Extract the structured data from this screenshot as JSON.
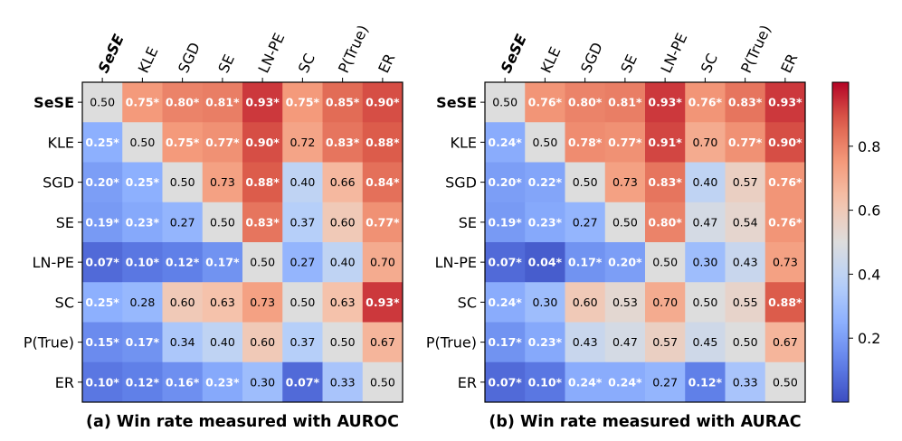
{
  "chart_data": [
    {
      "type": "heatmap",
      "title": "(a) Win rate measured with AUROC",
      "rows": [
        "SeSE",
        "KLE",
        "SGD",
        "SE",
        "LN-PE",
        "SC",
        "P(True)",
        "ER"
      ],
      "cols": [
        "SeSE",
        "KLE",
        "SGD",
        "SE",
        "LN-PE",
        "SC",
        "P(True)",
        "ER"
      ],
      "bold_label": "SeSE",
      "values": [
        [
          0.5,
          0.75,
          0.8,
          0.81,
          0.93,
          0.75,
          0.85,
          0.9
        ],
        [
          0.25,
          0.5,
          0.75,
          0.77,
          0.9,
          0.72,
          0.83,
          0.88
        ],
        [
          0.2,
          0.25,
          0.5,
          0.73,
          0.88,
          0.4,
          0.66,
          0.84
        ],
        [
          0.19,
          0.23,
          0.27,
          0.5,
          0.83,
          0.37,
          0.6,
          0.77
        ],
        [
          0.07,
          0.1,
          0.12,
          0.17,
          0.5,
          0.27,
          0.4,
          0.7
        ],
        [
          0.25,
          0.28,
          0.6,
          0.63,
          0.73,
          0.5,
          0.63,
          0.93
        ],
        [
          0.15,
          0.17,
          0.34,
          0.4,
          0.6,
          0.37,
          0.5,
          0.67
        ],
        [
          0.1,
          0.12,
          0.16,
          0.23,
          0.3,
          0.07,
          0.33,
          0.5
        ]
      ],
      "labels": [
        [
          "0.50",
          "0.75*",
          "0.80*",
          "0.81*",
          "0.93*",
          "0.75*",
          "0.85*",
          "0.90*"
        ],
        [
          "0.25*",
          "0.50",
          "0.75*",
          "0.77*",
          "0.90*",
          "0.72",
          "0.83*",
          "0.88*"
        ],
        [
          "0.20*",
          "0.25*",
          "0.50",
          "0.73",
          "0.88*",
          "0.40",
          "0.66",
          "0.84*"
        ],
        [
          "0.19*",
          "0.23*",
          "0.27",
          "0.50",
          "0.83*",
          "0.37",
          "0.60",
          "0.77*"
        ],
        [
          "0.07*",
          "0.10*",
          "0.12*",
          "0.17*",
          "0.50",
          "0.27",
          "0.40",
          "0.70"
        ],
        [
          "0.25*",
          "0.28",
          "0.60",
          "0.63",
          "0.73",
          "0.50",
          "0.63",
          "0.93*"
        ],
        [
          "0.15*",
          "0.17*",
          "0.34",
          "0.40",
          "0.60",
          "0.37",
          "0.50",
          "0.67"
        ],
        [
          "0.10*",
          "0.12*",
          "0.16*",
          "0.23*",
          "0.30",
          "0.07*",
          "0.33",
          "0.50"
        ]
      ]
    },
    {
      "type": "heatmap",
      "title": "(b) Win rate measured with AURAC",
      "rows": [
        "SeSE",
        "KLE",
        "SGD",
        "SE",
        "LN-PE",
        "SC",
        "P(True)",
        "ER"
      ],
      "cols": [
        "SeSE",
        "KLE",
        "SGD",
        "SE",
        "LN-PE",
        "SC",
        "P(True)",
        "ER"
      ],
      "bold_label": "SeSE",
      "values": [
        [
          0.5,
          0.76,
          0.8,
          0.81,
          0.93,
          0.76,
          0.83,
          0.93
        ],
        [
          0.24,
          0.5,
          0.78,
          0.77,
          0.91,
          0.7,
          0.77,
          0.9
        ],
        [
          0.2,
          0.22,
          0.5,
          0.73,
          0.83,
          0.4,
          0.57,
          0.76
        ],
        [
          0.19,
          0.23,
          0.27,
          0.5,
          0.8,
          0.47,
          0.54,
          0.76
        ],
        [
          0.07,
          0.04,
          0.17,
          0.2,
          0.5,
          0.3,
          0.43,
          0.73
        ],
        [
          0.24,
          0.3,
          0.6,
          0.53,
          0.7,
          0.5,
          0.55,
          0.88
        ],
        [
          0.17,
          0.23,
          0.43,
          0.47,
          0.57,
          0.45,
          0.5,
          0.67
        ],
        [
          0.07,
          0.1,
          0.24,
          0.24,
          0.27,
          0.12,
          0.33,
          0.5
        ]
      ],
      "labels": [
        [
          "0.50",
          "0.76*",
          "0.80*",
          "0.81*",
          "0.93*",
          "0.76*",
          "0.83*",
          "0.93*"
        ],
        [
          "0.24*",
          "0.50",
          "0.78*",
          "0.77*",
          "0.91*",
          "0.70",
          "0.77*",
          "0.90*"
        ],
        [
          "0.20*",
          "0.22*",
          "0.50",
          "0.73",
          "0.83*",
          "0.40",
          "0.57",
          "0.76*"
        ],
        [
          "0.19*",
          "0.23*",
          "0.27",
          "0.50",
          "0.80*",
          "0.47",
          "0.54",
          "0.76*"
        ],
        [
          "0.07*",
          "0.04*",
          "0.17*",
          "0.20*",
          "0.50",
          "0.30",
          "0.43",
          "0.73"
        ],
        [
          "0.24*",
          "0.30",
          "0.60",
          "0.53",
          "0.70",
          "0.50",
          "0.55",
          "0.88*"
        ],
        [
          "0.17*",
          "0.23*",
          "0.43",
          "0.47",
          "0.57",
          "0.45",
          "0.50",
          "0.67"
        ],
        [
          "0.07*",
          "0.10*",
          "0.24*",
          "0.24*",
          "0.27",
          "0.12*",
          "0.33",
          "0.50"
        ]
      ]
    }
  ],
  "colorbar": {
    "colormap": "coolwarm",
    "range": [
      0,
      1
    ],
    "ticks": [
      0.2,
      0.4,
      0.6,
      0.8
    ],
    "tick_labels": [
      "0.2",
      "0.4",
      "0.6",
      "0.8"
    ]
  }
}
